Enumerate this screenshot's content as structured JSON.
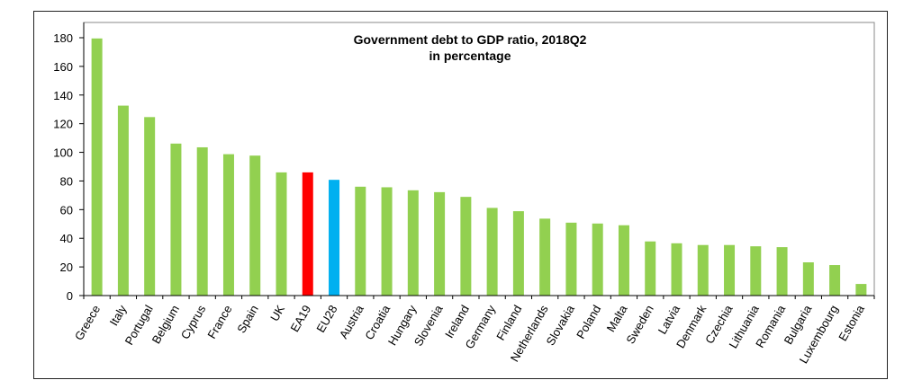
{
  "chart_data": {
    "type": "bar",
    "title": "Government debt to GDP ratio, 2018Q2",
    "subtitle": "in percentage",
    "xlabel": "",
    "ylabel": "",
    "ylim": [
      0,
      180
    ],
    "yticks": [
      0,
      20,
      40,
      60,
      80,
      100,
      120,
      140,
      160,
      180
    ],
    "grid": false,
    "categories": [
      "Greece",
      "Italy",
      "Portugal",
      "Belgium",
      "Cyprus",
      "France",
      "Spain",
      "UK",
      "EA19",
      "EU28",
      "Austria",
      "Croatia",
      "Hungary",
      "Slovenia",
      "Ireland",
      "Germany",
      "Finland",
      "Netherlands",
      "Slovakia",
      "Poland",
      "Malta",
      "Sweden",
      "Latvia",
      "Denmark",
      "Czechia",
      "Lithuania",
      "Romania",
      "Bulgaria",
      "Luxembourg",
      "Estonia"
    ],
    "values": [
      179.5,
      132.6,
      124.6,
      106.1,
      103.5,
      98.7,
      97.7,
      86.0,
      86.0,
      80.8,
      76.0,
      75.6,
      73.5,
      72.2,
      68.9,
      61.2,
      58.9,
      53.7,
      50.9,
      50.3,
      49.1,
      37.8,
      36.5,
      35.3,
      35.3,
      34.4,
      33.8,
      23.2,
      21.3,
      8.1
    ],
    "colors": {
      "default": "#92d050",
      "EA19": "#ff0000",
      "EU28": "#00b0f0"
    }
  }
}
